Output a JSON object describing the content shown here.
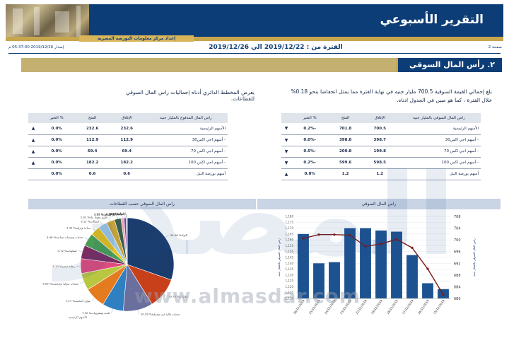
{
  "header": {
    "title": "التقرير الأسبوعي",
    "subtitle": "إعداد مركز معلومات البورصة المصرية",
    "page": "صفحة 2",
    "issued": "إصدار 2019/12/26 05:37:00 م",
    "period": "الفترة من : 2019/12/22 الي 2019/12/26"
  },
  "section": {
    "title": "٢. رأس المال السوقي"
  },
  "paragraphs": {
    "right": "بلغ إجمالي القيمة السوقية 700.5 مليار جنيه في نهاية الفترة مما يمثل انخفاضا بنحو 0.18% خلال الفترة ، كما هو مبين في الجدول ادناه.",
    "left": "يعرض المخطط الدائري أدناه إجماليات راس المال السوقي للقطاعات."
  },
  "table_right": {
    "headers": [
      "راس المال السوقي بالمليار جنيه",
      "الإغلاق",
      "الفتح",
      "% التغير"
    ],
    "rows": [
      {
        "name": "الأسهم الرئيسية",
        "close": "700.5",
        "open": "701.8",
        "change": "-0.2%",
        "dir": "down"
      },
      {
        "name": "- أسهم اجي اكس30",
        "close": "398.7",
        "open": "398.8",
        "change": "-0.0%",
        "dir": "down"
      },
      {
        "name": "- أسهم اجي اكس 70",
        "close": "199.8",
        "open": "200.8",
        "change": "-0.5%",
        "dir": "down"
      },
      {
        "name": "- أسهم اجي اكس 100",
        "close": "598.5",
        "open": "599.6",
        "change": "-0.2%",
        "dir": "down"
      },
      {
        "name": "أسهم بورصة النيل",
        "close": "1.2",
        "open": "1.2",
        "change": "0.8%",
        "dir": "up"
      }
    ]
  },
  "table_left": {
    "headers": [
      "راس المال المدفوع بالمليار جنيه",
      "الإغلاق",
      "الفتح",
      "% التغير"
    ],
    "rows": [
      {
        "name": "الأسهم الرئيسية",
        "close": "232.6",
        "open": "232.6",
        "change": "0.0%",
        "dir": "up"
      },
      {
        "name": "- أسهم اجي اكس30",
        "close": "112.9",
        "open": "112.9",
        "change": "0.0%",
        "dir": "up"
      },
      {
        "name": "- أسهم اجي اكس 70",
        "close": "69.4",
        "open": "69.4",
        "change": "0.0%",
        "dir": "up"
      },
      {
        "name": "- أسهم اجي اكس 100",
        "close": "182.2",
        "open": "182.2",
        "change": "0.0%",
        "dir": "up"
      },
      {
        "name": "أسهم بورصة النيل",
        "close": "0.6",
        "open": "0.6",
        "change": "0.0%",
        "dir": ""
      }
    ]
  },
  "panels": {
    "left_title": "راس المال السوقي حسب القطاعات",
    "right_title": "راس المال السوقي"
  },
  "watermark": {
    "url": "www.almasdar.com"
  },
  "chart_data": [
    {
      "type": "pie",
      "title": "راس المال السوقي حسب القطاعات",
      "slices": [
        {
          "label": "%النوك",
          "value": 30.36,
          "color": "#1b3d6e"
        },
        {
          "label": "%عقارات",
          "value": 10.73,
          "color": "#c8401a"
        },
        {
          "label": "%خدمات مالية غير مصرفية",
          "value": 10.28,
          "color": "#6a6f9e"
        },
        {
          "label": "%اغذية ومشروبات",
          "value": 7.32,
          "color": "#2f7fc1"
        },
        {
          "label": "%موارد أساسية",
          "value": 7.27,
          "color": "#e57b1f"
        },
        {
          "label": "%منتجات منزلية وشخصية",
          "value": 5.92,
          "color": "#b9c640"
        },
        {
          "label": "%رعاية صحية",
          "value": 5.13,
          "color": "#e04b7d"
        },
        {
          "label": "%كيماويات",
          "value": 4.72,
          "color": "#7a2c61"
        },
        {
          "label": "%خدمات ومنتجات صناعية",
          "value": 4.48,
          "color": "#4a9d54"
        },
        {
          "label": "%سياحة وترفيه",
          "value": 3.32,
          "color": "#e6c019"
        },
        {
          "label": "%اتصالات",
          "value": 3.12,
          "color": "#9ec7e6"
        },
        {
          "label": "%تشييد ومواد بناء",
          "value": 2.91,
          "color": "#c4a23b"
        },
        {
          "label": "%غاز وبترول",
          "value": 2.25,
          "color": "#3a5f4f"
        },
        {
          "label": "%تجارة وموزعون",
          "value": 1.07,
          "color": "#ef9fb5"
        },
        {
          "label": "%اعلام",
          "value": 0.79,
          "color": "#5a4a9a"
        },
        {
          "label": "%تكنولوجيا",
          "value": 0.18,
          "color": "#8a8a8a"
        },
        {
          "label": "%أخرى",
          "value": 0.13,
          "color": "#c86a2a"
        }
      ],
      "legend_label": "الأسهم الرئيسية"
    },
    {
      "type": "bar",
      "title": "راس المال السوقي",
      "categories": [
        "26/12/2019",
        "25/12/2019",
        "24/12/2019",
        "23/12/2019",
        "22/12/2019",
        "19/12/2019",
        "18/12/2019",
        "17/12/2019",
        "16/12/2019",
        "15/12/2019"
      ],
      "series": [
        {
          "name": "",
          "axis": "left",
          "values": [
            1165,
            1140,
            1141,
            1170,
            1170,
            1168,
            1167,
            1147,
            1123,
            1118
          ]
        },
        {
          "name": "",
          "axis": "right",
          "values": [
            700.5,
            701.8,
            701.8,
            701.6,
            697.8,
            698.6,
            700.2,
            697.3,
            690.1,
            681.3
          ]
        }
      ],
      "y_left_ticks": [
        "1,180",
        "1,175",
        "1,170",
        "1,165",
        "1,160",
        "1,155",
        "1,150",
        "1,145",
        "1,140",
        "1,135",
        "1,130",
        "1,125",
        "1,120",
        "1,115",
        "1,110"
      ],
      "y_right_ticks": [
        "708",
        "704",
        "700",
        "696",
        "692",
        "688",
        "684",
        "680"
      ],
      "ylim_left": [
        1110,
        1180
      ],
      "ylim_right": [
        680,
        708
      ],
      "y_left_label": "راس المال السوقي بالمليار جنيه",
      "y_right_label": "راس المال السوقي بالمليار جنيه"
    }
  ]
}
